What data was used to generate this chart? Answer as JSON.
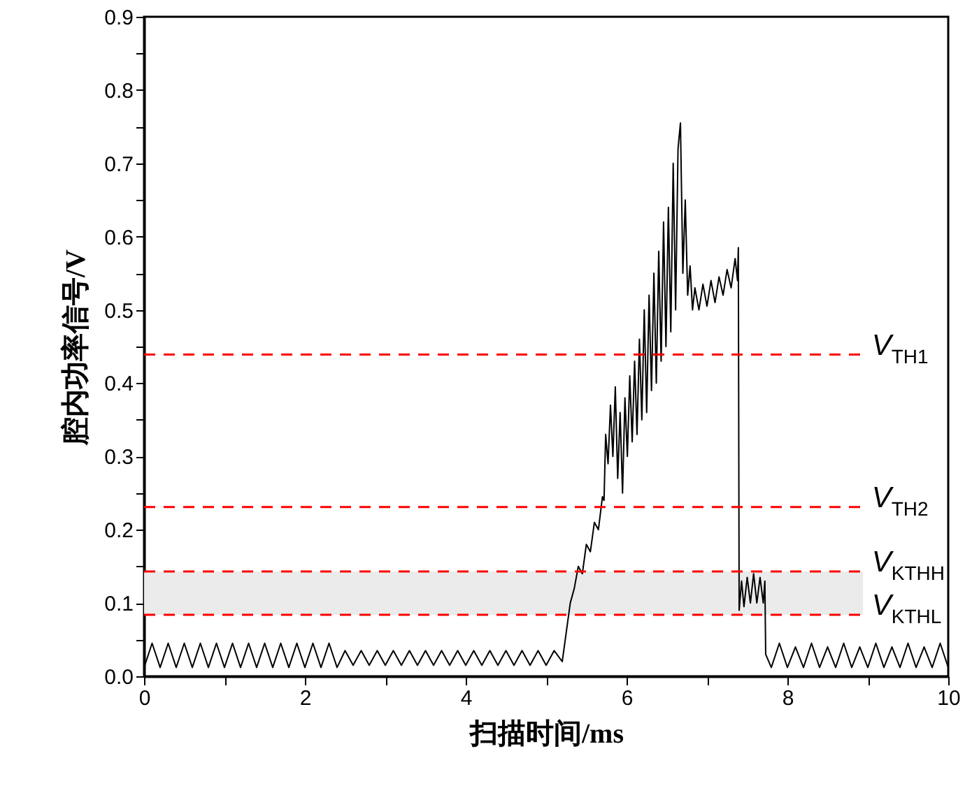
{
  "chart_data": {
    "type": "line",
    "xlabel": "扫描时间/ms",
    "ylabel": "腔内功率信号/V",
    "xlim": [
      0,
      10
    ],
    "ylim": [
      0,
      0.9
    ],
    "xticks": [
      0,
      {
        "value": 1,
        "label": null
      },
      2,
      {
        "value": 3,
        "label": null
      },
      4,
      {
        "value": 5,
        "label": null
      },
      6,
      {
        "value": 7,
        "label": null
      },
      8,
      {
        "value": 9,
        "label": null
      },
      10
    ],
    "yticks": [
      {
        "value": 0,
        "label": "0.0"
      },
      {
        "value": 0.05,
        "label": null
      },
      0.1,
      {
        "value": 0.15,
        "label": null
      },
      0.2,
      {
        "value": 0.25,
        "label": null
      },
      0.3,
      {
        "value": 0.35,
        "label": null
      },
      0.4,
      {
        "value": 0.45,
        "label": null
      },
      0.5,
      {
        "value": 0.55,
        "label": null
      },
      0.6,
      {
        "value": 0.65,
        "label": null
      },
      0.7,
      {
        "value": 0.75,
        "label": null
      },
      0.8,
      {
        "value": 0.85,
        "label": null
      },
      0.9
    ],
    "grid": false,
    "line_style": "solid",
    "series": [
      {
        "color": "#000000",
        "x": [
          0,
          0.1,
          0.2,
          0.3,
          0.4,
          0.5,
          0.6,
          0.7,
          0.8,
          0.9,
          1.0,
          1.1,
          1.2,
          1.3,
          1.4,
          1.5,
          1.6,
          1.7,
          1.8,
          1.9,
          2.0,
          2.1,
          2.2,
          2.3,
          2.4,
          2.5,
          2.6,
          2.7,
          2.8,
          2.9,
          3.0,
          3.1,
          3.2,
          3.3,
          3.4,
          3.5,
          3.6,
          3.7,
          3.8,
          3.9,
          4.0,
          4.1,
          4.2,
          4.3,
          4.4,
          4.5,
          4.6,
          4.7,
          4.8,
          4.9,
          5.0,
          5.1,
          5.2,
          5.25,
          5.3,
          5.35,
          5.4,
          5.45,
          5.5,
          5.55,
          5.6,
          5.65,
          5.7,
          5.72,
          5.74,
          5.77,
          5.8,
          5.83,
          5.86,
          5.89,
          5.92,
          5.95,
          5.98,
          6.01,
          6.04,
          6.07,
          6.1,
          6.13,
          6.16,
          6.19,
          6.22,
          6.25,
          6.28,
          6.31,
          6.34,
          6.37,
          6.4,
          6.43,
          6.46,
          6.49,
          6.52,
          6.55,
          6.58,
          6.61,
          6.64,
          6.67,
          6.7,
          6.73,
          6.76,
          6.79,
          6.82,
          6.85,
          6.9,
          6.95,
          7.0,
          7.05,
          7.1,
          7.15,
          7.2,
          7.25,
          7.3,
          7.35,
          7.38,
          7.39,
          7.4,
          7.43,
          7.46,
          7.5,
          7.54,
          7.58,
          7.62,
          7.66,
          7.7,
          7.72,
          7.73,
          7.8,
          7.9,
          8.0,
          8.1,
          8.2,
          8.3,
          8.4,
          8.5,
          8.6,
          8.7,
          8.8,
          8.9,
          9.0,
          9.1,
          9.2,
          9.3,
          9.4,
          9.5,
          9.6,
          9.7,
          9.8,
          9.9,
          10.0
        ],
        "values": [
          0.012,
          0.045,
          0.012,
          0.045,
          0.012,
          0.045,
          0.012,
          0.045,
          0.012,
          0.045,
          0.012,
          0.045,
          0.012,
          0.045,
          0.012,
          0.045,
          0.012,
          0.045,
          0.012,
          0.045,
          0.012,
          0.045,
          0.012,
          0.045,
          0.012,
          0.035,
          0.015,
          0.035,
          0.015,
          0.035,
          0.015,
          0.035,
          0.015,
          0.035,
          0.015,
          0.035,
          0.015,
          0.035,
          0.015,
          0.035,
          0.015,
          0.035,
          0.015,
          0.035,
          0.015,
          0.035,
          0.015,
          0.035,
          0.015,
          0.035,
          0.015,
          0.035,
          0.02,
          0.06,
          0.1,
          0.12,
          0.15,
          0.14,
          0.18,
          0.17,
          0.21,
          0.2,
          0.245,
          0.24,
          0.33,
          0.29,
          0.37,
          0.3,
          0.395,
          0.27,
          0.36,
          0.25,
          0.38,
          0.3,
          0.41,
          0.32,
          0.43,
          0.33,
          0.46,
          0.35,
          0.5,
          0.36,
          0.52,
          0.39,
          0.55,
          0.4,
          0.58,
          0.43,
          0.62,
          0.45,
          0.64,
          0.47,
          0.7,
          0.5,
          0.72,
          0.755,
          0.55,
          0.65,
          0.52,
          0.56,
          0.5,
          0.53,
          0.5,
          0.535,
          0.505,
          0.54,
          0.51,
          0.545,
          0.52,
          0.555,
          0.53,
          0.57,
          0.54,
          0.585,
          0.09,
          0.13,
          0.095,
          0.135,
          0.1,
          0.14,
          0.1,
          0.135,
          0.1,
          0.13,
          0.03,
          0.012,
          0.045,
          0.012,
          0.04,
          0.012,
          0.045,
          0.012,
          0.04,
          0.012,
          0.045,
          0.012,
          0.04,
          0.012,
          0.045,
          0.012,
          0.04,
          0.012,
          0.045,
          0.012,
          0.04,
          0.012,
          0.045,
          0.012
        ]
      }
    ],
    "bands": [
      {
        "axis": "y",
        "from": 0.084,
        "to": 0.143,
        "color": "#ebebeb"
      }
    ],
    "ref_lines": [
      {
        "axis": "y",
        "value": 0.439,
        "label": "V$_{TH1}$",
        "color": "#ff0000",
        "line_style": "dashed"
      },
      {
        "axis": "y",
        "value": 0.231,
        "label": "V$_{TH2}$",
        "color": "#ff0000",
        "line_style": "dashed"
      },
      {
        "axis": "y",
        "value": 0.143,
        "label": "V$_{KTHH}$",
        "color": "#ff0000",
        "line_style": "dashed"
      },
      {
        "axis": "y",
        "value": 0.084,
        "label": "V$_{KTHL}$",
        "color": "#ff0000",
        "line_style": "dashed"
      }
    ]
  }
}
